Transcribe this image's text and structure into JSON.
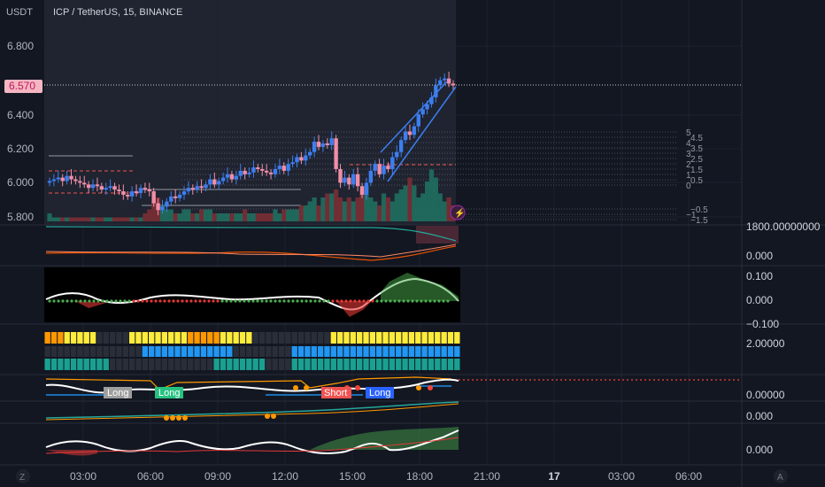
{
  "header": {
    "currency": "USDT",
    "symbol_title": "ICP / TetherUS, 15, BINANCE",
    "current_price_tag": "6.570"
  },
  "price_axis": {
    "ticks": [
      "6.800",
      "6.400",
      "6.200",
      "6.000",
      "5.800"
    ]
  },
  "pane_axes": {
    "volume_pane": [
      "1800.00000000",
      "0.000"
    ],
    "oscillator_pane": [
      "0.100",
      "0.000",
      "−0.100"
    ],
    "heatmap_pane": [
      "2.00000"
    ],
    "signal_pane": [
      "0.00000",
      "0.000"
    ],
    "momentum_pane": [
      "0.000"
    ]
  },
  "time_axis": {
    "ticks": [
      "03:00",
      "06:00",
      "09:00",
      "12:00",
      "15:00",
      "18:00",
      "21:00",
      "17",
      "03:00",
      "06:00"
    ],
    "left_icon": "Z",
    "right_icon": "A"
  },
  "level_labels": [
    "5",
    "4.5",
    "4",
    "3.5",
    "3",
    "2.5",
    "2",
    "1.5",
    "1",
    "0.5",
    "0",
    "−0.5",
    "−1",
    "−1.5"
  ],
  "signal_labels": {
    "long1": "Long",
    "long2": "Long",
    "short1": "Short",
    "long3": "Long"
  },
  "colors": {
    "background": "#131722",
    "bull_candle": "#3d7ef0",
    "bear_candle": "#f08ea8",
    "price_tag_bg": "#f4b6c2",
    "price_tag_text": "#c2185b"
  },
  "chart_data": {
    "type": "candlestick",
    "title": "ICP / TetherUS, 15, BINANCE",
    "ylim": [
      5.72,
      6.9
    ],
    "last_price": 6.57,
    "x_ticks": [
      "03:00",
      "06:00",
      "09:00",
      "12:00",
      "15:00",
      "18:00",
      "21:00",
      "17",
      "03:00",
      "06:00"
    ],
    "closes": [
      6.01,
      6.02,
      6.03,
      6.01,
      6.04,
      6.02,
      6.01,
      6.0,
      5.99,
      5.97,
      5.99,
      5.98,
      5.96,
      5.97,
      5.98,
      5.96,
      5.95,
      5.93,
      5.92,
      5.95,
      5.94,
      5.97,
      5.96,
      5.95,
      5.88,
      5.84,
      5.86,
      5.89,
      5.92,
      5.91,
      5.93,
      5.95,
      5.97,
      5.96,
      5.98,
      5.97,
      5.99,
      6.02,
      5.99,
      6.01,
      6.03,
      6.05,
      6.02,
      6.04,
      6.07,
      6.05,
      6.06,
      6.09,
      6.08,
      6.07,
      6.06,
      6.05,
      6.08,
      6.1,
      6.07,
      6.11,
      6.12,
      6.15,
      6.13,
      6.16,
      6.18,
      6.24,
      6.21,
      6.23,
      6.22,
      6.26,
      6.08,
      6.0,
      6.03,
      5.99,
      6.05,
      5.98,
      5.93,
      6.0,
      6.07,
      6.11,
      6.05,
      6.1,
      6.08,
      6.15,
      6.18,
      6.25,
      6.3,
      6.28,
      6.33,
      6.4,
      6.43,
      6.46,
      6.5,
      6.57,
      6.6,
      6.61,
      6.58,
      6.57
    ],
    "volume": [
      2,
      1,
      1,
      1,
      1,
      1,
      1,
      1,
      1,
      1,
      1,
      1,
      1,
      1,
      1,
      1,
      1,
      1,
      1,
      1,
      1,
      1,
      2,
      3,
      5,
      6,
      4,
      3,
      3,
      2,
      2,
      3,
      3,
      2,
      2,
      3,
      3,
      3,
      2,
      2,
      2,
      2,
      2,
      2,
      2,
      3,
      2,
      2,
      2,
      2,
      2,
      2,
      3,
      2,
      3,
      3,
      3,
      3,
      4,
      4,
      5,
      6,
      4,
      6,
      7,
      7,
      8,
      6,
      5,
      6,
      5,
      6,
      8,
      9,
      6,
      5,
      4,
      7,
      6,
      5,
      7,
      8,
      9,
      11,
      9,
      6,
      7,
      10,
      13,
      11,
      7,
      5,
      6,
      4
    ]
  }
}
